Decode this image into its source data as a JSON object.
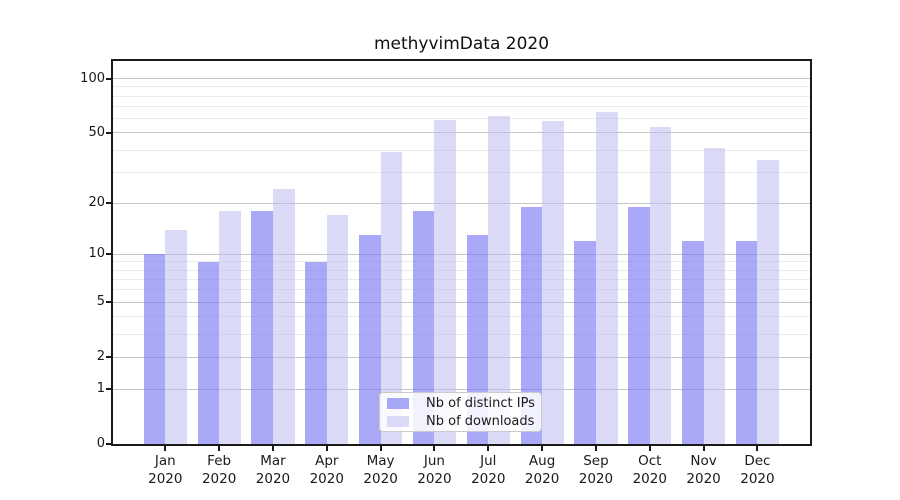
{
  "title": "methyvimData 2020",
  "chart_data": {
    "type": "bar",
    "title": "methyvimData 2020",
    "categories": [
      "Jan 2020",
      "Feb 2020",
      "Mar 2020",
      "Apr 2020",
      "May 2020",
      "Jun 2020",
      "Jul 2020",
      "Aug 2020",
      "Sep 2020",
      "Oct 2020",
      "Nov 2020",
      "Dec 2020"
    ],
    "series": [
      {
        "name": "Nb of distinct IPs",
        "color": "rgba(120,120,242,0.64)",
        "values": [
          10,
          9,
          18,
          9,
          13,
          18,
          13,
          19,
          12,
          19,
          12,
          12
        ]
      },
      {
        "name": "Nb of downloads",
        "color": "rgba(190,190,243,0.55)",
        "values": [
          14,
          18,
          24,
          17,
          39,
          59,
          62,
          58,
          65,
          54,
          41,
          35
        ]
      }
    ],
    "yscale": "log1p",
    "ylim": [
      0,
      125
    ],
    "yticks": [
      0,
      1,
      2,
      5,
      10,
      20,
      50,
      100
    ],
    "yticks_minor": [
      3,
      4,
      6,
      7,
      8,
      9,
      30,
      40,
      60,
      70,
      80,
      90
    ],
    "grid": "horizontal",
    "legend_position": "lower center inside"
  },
  "axes": {
    "y_tick_labels": [
      "0",
      "1",
      "2",
      "5",
      "10",
      "20",
      "50",
      "100"
    ],
    "x_tick_months": [
      "Jan",
      "Feb",
      "Mar",
      "Apr",
      "May",
      "Jun",
      "Jul",
      "Aug",
      "Sep",
      "Oct",
      "Nov",
      "Dec"
    ],
    "x_tick_year": "2020"
  },
  "legend": {
    "items": [
      {
        "label": "Nb of distinct IPs",
        "color": "rgba(120,120,242,0.64)"
      },
      {
        "label": "Nb of downloads",
        "color": "rgba(190,190,243,0.55)"
      }
    ]
  },
  "colors": {
    "major_grid": "#c6c6c6",
    "minor_grid": "#ebebeb",
    "spine": "#1a1a1a",
    "text": "#1a1a1a"
  }
}
